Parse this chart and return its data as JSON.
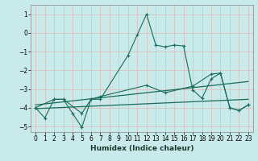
{
  "xlabel": "Humidex (Indice chaleur)",
  "background_color": "#c8eaea",
  "grid_color": "#e0b8b8",
  "line_color": "#1a6b5a",
  "xlim": [
    -0.5,
    23.5
  ],
  "ylim": [
    -5.3,
    1.5
  ],
  "yticks": [
    1,
    0,
    -1,
    -2,
    -3,
    -4,
    -5
  ],
  "xticks": [
    0,
    1,
    2,
    3,
    4,
    5,
    6,
    7,
    8,
    9,
    10,
    11,
    12,
    13,
    14,
    15,
    16,
    17,
    18,
    19,
    20,
    21,
    22,
    23
  ],
  "s1_x": [
    0,
    1,
    2,
    3,
    4,
    5,
    6,
    7,
    10,
    11,
    12,
    13,
    14,
    15,
    16,
    17,
    18,
    19,
    20,
    21,
    22,
    23
  ],
  "s1_y": [
    -4.0,
    -4.55,
    -3.55,
    -3.55,
    -4.3,
    -5.05,
    -3.55,
    -3.55,
    -1.2,
    -0.1,
    1.0,
    -0.65,
    -0.75,
    -0.65,
    -0.7,
    -3.05,
    -3.5,
    -2.45,
    -2.15,
    -4.0,
    -4.15,
    -3.85
  ],
  "s2_x": [
    0,
    2,
    3,
    5,
    6,
    7,
    12,
    14,
    17,
    19,
    20,
    21,
    22,
    23
  ],
  "s2_y": [
    -4.0,
    -3.55,
    -3.55,
    -4.3,
    -3.55,
    -3.4,
    -2.8,
    -3.2,
    -2.85,
    -2.2,
    -2.15,
    -4.0,
    -4.15,
    -3.85
  ],
  "trend1_x": [
    0,
    23
  ],
  "trend1_y": [
    -3.85,
    -2.6
  ],
  "trend2_x": [
    0,
    23
  ],
  "trend2_y": [
    -4.05,
    -3.55
  ]
}
